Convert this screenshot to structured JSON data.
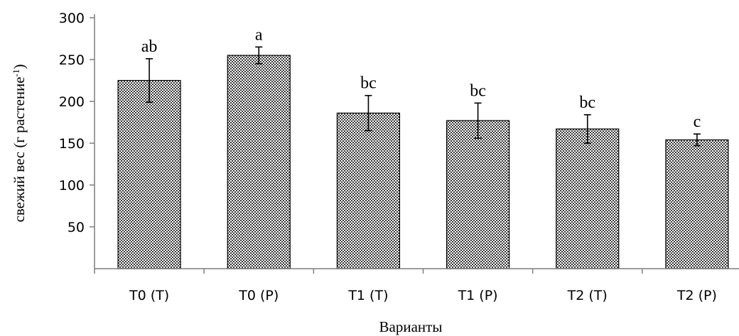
{
  "chart_data": {
    "type": "bar",
    "categories": [
      "T0 (T)",
      "T0 (P)",
      "T1 (T)",
      "T1 (P)",
      "T2 (T)",
      "T2 (P)"
    ],
    "series": [
      {
        "values": [
          225,
          255,
          186,
          177,
          167,
          154
        ],
        "error": [
          26,
          10,
          21,
          21,
          17,
          7
        ],
        "significance_labels": [
          "ab",
          "a",
          "bc",
          "bc",
          "bc",
          "c"
        ]
      }
    ],
    "xlabel": "Варианты",
    "ylabel_main": "свежий вес (г растение",
    "ylabel_sup": "-1",
    "ylabel_close": ")",
    "ylim": [
      0,
      300
    ],
    "yticks": [
      50,
      100,
      150,
      200,
      250,
      300
    ],
    "grid": false,
    "bar_fill": "dotted-gray",
    "colors": {
      "bar_dark": "#3a3a3a",
      "bar_light": "#ffffff",
      "axis": "#7f7f7f"
    }
  }
}
